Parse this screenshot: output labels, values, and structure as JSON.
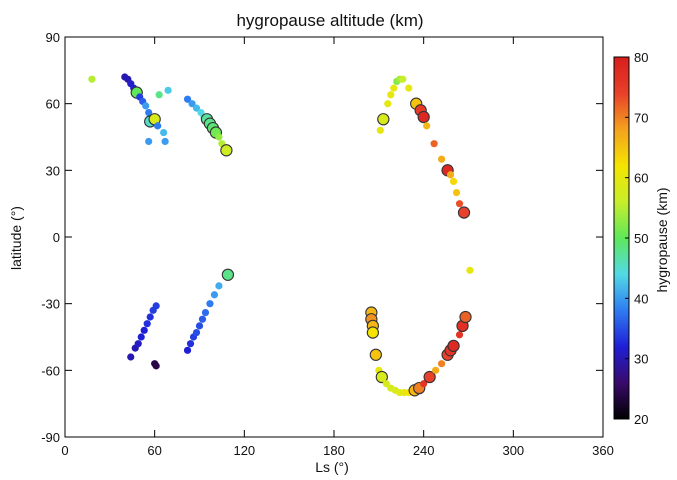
{
  "chart_data": {
    "type": "scatter",
    "title": "hygropause altitude (km)",
    "xlabel": "Ls (°)",
    "ylabel": "latitude (°)",
    "xlim": [
      0,
      360
    ],
    "ylim": [
      -90,
      90
    ],
    "xticks": [
      0,
      60,
      120,
      180,
      240,
      300,
      360
    ],
    "yticks": [
      90,
      60,
      30,
      0,
      -30,
      -60,
      -90
    ],
    "grid": false,
    "colorbar": {
      "label": "hygropause (km)",
      "range": [
        20,
        80
      ],
      "ticks": [
        80,
        70,
        60,
        50,
        40,
        30,
        20
      ],
      "colormap": [
        "#000000",
        "#3a0a6b",
        "#1f1fd6",
        "#2f7cf2",
        "#52d9e6",
        "#5ee85a",
        "#c8ee2a",
        "#f5e400",
        "#f4a21e",
        "#e8402a",
        "#d81e1e"
      ]
    },
    "points": [
      {
        "ls": 18,
        "lat": 71,
        "alt": 55,
        "outlined": false
      },
      {
        "ls": 40,
        "lat": 72,
        "alt": 30,
        "outlined": false
      },
      {
        "ls": 42,
        "lat": 71,
        "alt": 30,
        "outlined": false
      },
      {
        "ls": 44,
        "lat": 69,
        "alt": 31,
        "outlined": false
      },
      {
        "ls": 46,
        "lat": 67,
        "alt": 32,
        "outlined": false
      },
      {
        "ls": 48,
        "lat": 65,
        "alt": 50,
        "outlined": true
      },
      {
        "ls": 50,
        "lat": 63,
        "alt": 34,
        "outlined": false
      },
      {
        "ls": 52,
        "lat": 61,
        "alt": 36,
        "outlined": false
      },
      {
        "ls": 54,
        "lat": 59,
        "alt": 40,
        "outlined": false
      },
      {
        "ls": 56,
        "lat": 56,
        "alt": 38,
        "outlined": false
      },
      {
        "ls": 57,
        "lat": 52,
        "alt": 45,
        "outlined": true
      },
      {
        "ls": 59,
        "lat": 54,
        "alt": 52,
        "outlined": false
      },
      {
        "ls": 60,
        "lat": 53,
        "alt": 58,
        "outlined": true
      },
      {
        "ls": 62,
        "lat": 50,
        "alt": 38,
        "outlined": false
      },
      {
        "ls": 63,
        "lat": 64,
        "alt": 48,
        "outlined": false
      },
      {
        "ls": 66,
        "lat": 47,
        "alt": 42,
        "outlined": false
      },
      {
        "ls": 67,
        "lat": 43,
        "alt": 40,
        "outlined": false
      },
      {
        "ls": 69,
        "lat": 66,
        "alt": 43,
        "outlined": false
      },
      {
        "ls": 56,
        "lat": 43,
        "alt": 40,
        "outlined": false
      },
      {
        "ls": 82,
        "lat": 62,
        "alt": 38,
        "outlined": false
      },
      {
        "ls": 85,
        "lat": 60,
        "alt": 40,
        "outlined": false
      },
      {
        "ls": 88,
        "lat": 58,
        "alt": 42,
        "outlined": false
      },
      {
        "ls": 91,
        "lat": 56,
        "alt": 44,
        "outlined": false
      },
      {
        "ls": 93,
        "lat": 54,
        "alt": 45,
        "outlined": false
      },
      {
        "ls": 95,
        "lat": 53,
        "alt": 47,
        "outlined": true
      },
      {
        "ls": 97,
        "lat": 51,
        "alt": 48,
        "outlined": true
      },
      {
        "ls": 99,
        "lat": 49,
        "alt": 49,
        "outlined": true
      },
      {
        "ls": 101,
        "lat": 47,
        "alt": 51,
        "outlined": true
      },
      {
        "ls": 103,
        "lat": 45,
        "alt": 53,
        "outlined": false
      },
      {
        "ls": 105,
        "lat": 42,
        "alt": 55,
        "outlined": false
      },
      {
        "ls": 108,
        "lat": 39,
        "alt": 57,
        "outlined": true
      },
      {
        "ls": 44,
        "lat": -54,
        "alt": 30,
        "outlined": false
      },
      {
        "ls": 47,
        "lat": -50,
        "alt": 30,
        "outlined": false
      },
      {
        "ls": 49,
        "lat": -48,
        "alt": 31,
        "outlined": false
      },
      {
        "ls": 51,
        "lat": -45,
        "alt": 32,
        "outlined": false
      },
      {
        "ls": 53,
        "lat": -42,
        "alt": 32,
        "outlined": false
      },
      {
        "ls": 55,
        "lat": -39,
        "alt": 33,
        "outlined": false
      },
      {
        "ls": 57,
        "lat": -36,
        "alt": 33,
        "outlined": false
      },
      {
        "ls": 59,
        "lat": -33,
        "alt": 34,
        "outlined": false
      },
      {
        "ls": 61,
        "lat": -31,
        "alt": 34,
        "outlined": false
      },
      {
        "ls": 60,
        "lat": -57,
        "alt": 24,
        "outlined": false
      },
      {
        "ls": 61,
        "lat": -58,
        "alt": 24,
        "outlined": false
      },
      {
        "ls": 82,
        "lat": -51,
        "alt": 32,
        "outlined": false
      },
      {
        "ls": 84,
        "lat": -48,
        "alt": 33,
        "outlined": false
      },
      {
        "ls": 86,
        "lat": -45,
        "alt": 34,
        "outlined": false
      },
      {
        "ls": 88,
        "lat": -43,
        "alt": 35,
        "outlined": false
      },
      {
        "ls": 90,
        "lat": -40,
        "alt": 35,
        "outlined": false
      },
      {
        "ls": 92,
        "lat": -37,
        "alt": 36,
        "outlined": false
      },
      {
        "ls": 94,
        "lat": -34,
        "alt": 37,
        "outlined": false
      },
      {
        "ls": 97,
        "lat": -30,
        "alt": 38,
        "outlined": false
      },
      {
        "ls": 100,
        "lat": -26,
        "alt": 40,
        "outlined": false
      },
      {
        "ls": 103,
        "lat": -22,
        "alt": 41,
        "outlined": false
      },
      {
        "ls": 109,
        "lat": -17,
        "alt": 48,
        "outlined": true
      },
      {
        "ls": 211,
        "lat": 48,
        "alt": 60,
        "outlined": false
      },
      {
        "ls": 213,
        "lat": 53,
        "alt": 58,
        "outlined": true
      },
      {
        "ls": 216,
        "lat": 60,
        "alt": 60,
        "outlined": false
      },
      {
        "ls": 218,
        "lat": 64,
        "alt": 60,
        "outlined": false
      },
      {
        "ls": 220,
        "lat": 67,
        "alt": 60,
        "outlined": false
      },
      {
        "ls": 222,
        "lat": 70,
        "alt": 52,
        "outlined": false
      },
      {
        "ls": 224,
        "lat": 71,
        "alt": 54,
        "outlined": false
      },
      {
        "ls": 226,
        "lat": 71,
        "alt": 56,
        "outlined": false
      },
      {
        "ls": 230,
        "lat": 67,
        "alt": 60,
        "outlined": false
      },
      {
        "ls": 235,
        "lat": 60,
        "alt": 65,
        "outlined": true
      },
      {
        "ls": 238,
        "lat": 57,
        "alt": 75,
        "outlined": true
      },
      {
        "ls": 240,
        "lat": 54,
        "alt": 78,
        "outlined": true
      },
      {
        "ls": 242,
        "lat": 50,
        "alt": 66,
        "outlined": false
      },
      {
        "ls": 247,
        "lat": 42,
        "alt": 72,
        "outlined": false
      },
      {
        "ls": 252,
        "lat": 35,
        "alt": 67,
        "outlined": false
      },
      {
        "ls": 256,
        "lat": 30,
        "alt": 78,
        "outlined": true
      },
      {
        "ls": 258,
        "lat": 28,
        "alt": 67,
        "outlined": false
      },
      {
        "ls": 260,
        "lat": 25,
        "alt": 63,
        "outlined": false
      },
      {
        "ls": 262,
        "lat": 20,
        "alt": 65,
        "outlined": false
      },
      {
        "ls": 264,
        "lat": 15,
        "alt": 73,
        "outlined": false
      },
      {
        "ls": 267,
        "lat": 11,
        "alt": 74,
        "outlined": true
      },
      {
        "ls": 271,
        "lat": -15,
        "alt": 60,
        "outlined": false
      },
      {
        "ls": 205,
        "lat": -34,
        "alt": 66,
        "outlined": true
      },
      {
        "ls": 205,
        "lat": -37,
        "alt": 69,
        "outlined": true
      },
      {
        "ls": 206,
        "lat": -40,
        "alt": 66,
        "outlined": true
      },
      {
        "ls": 206,
        "lat": -43,
        "alt": 62,
        "outlined": true
      },
      {
        "ls": 208,
        "lat": -53,
        "alt": 65,
        "outlined": true
      },
      {
        "ls": 210,
        "lat": -60,
        "alt": 60,
        "outlined": false
      },
      {
        "ls": 212,
        "lat": -63,
        "alt": 58,
        "outlined": true
      },
      {
        "ls": 215,
        "lat": -66,
        "alt": 58,
        "outlined": false
      },
      {
        "ls": 218,
        "lat": -68,
        "alt": 58,
        "outlined": false
      },
      {
        "ls": 221,
        "lat": -69,
        "alt": 58,
        "outlined": false
      },
      {
        "ls": 224,
        "lat": -70,
        "alt": 59,
        "outlined": false
      },
      {
        "ls": 227,
        "lat": -70,
        "alt": 60,
        "outlined": false
      },
      {
        "ls": 230,
        "lat": -70,
        "alt": 62,
        "outlined": false
      },
      {
        "ls": 234,
        "lat": -69,
        "alt": 66,
        "outlined": true
      },
      {
        "ls": 237,
        "lat": -68,
        "alt": 70,
        "outlined": true
      },
      {
        "ls": 240,
        "lat": -66,
        "alt": 76,
        "outlined": false
      },
      {
        "ls": 244,
        "lat": -63,
        "alt": 74,
        "outlined": true
      },
      {
        "ls": 248,
        "lat": -60,
        "alt": 67,
        "outlined": false
      },
      {
        "ls": 252,
        "lat": -57,
        "alt": 70,
        "outlined": false
      },
      {
        "ls": 256,
        "lat": -53,
        "alt": 74,
        "outlined": true
      },
      {
        "ls": 258,
        "lat": -51,
        "alt": 76,
        "outlined": true
      },
      {
        "ls": 260,
        "lat": -49,
        "alt": 78,
        "outlined": true
      },
      {
        "ls": 264,
        "lat": -44,
        "alt": 76,
        "outlined": false
      },
      {
        "ls": 266,
        "lat": -40,
        "alt": 77,
        "outlined": true
      },
      {
        "ls": 268,
        "lat": -36,
        "alt": 72,
        "outlined": true
      }
    ]
  }
}
